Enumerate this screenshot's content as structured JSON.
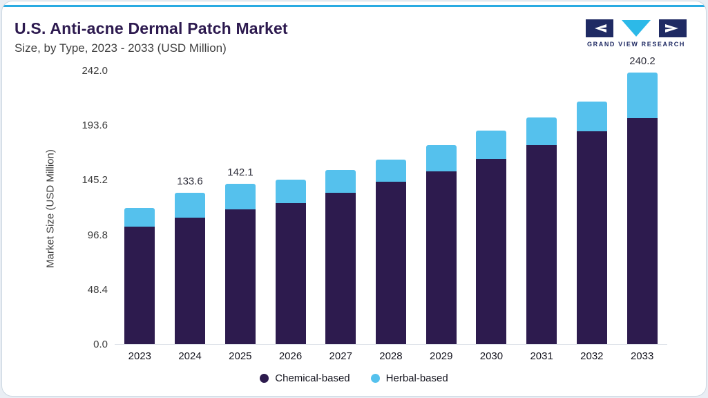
{
  "header": {
    "title": "U.S. Anti-acne Dermal Patch Market",
    "subtitle": "Size, by Type, 2023 - 2033 (USD Million)"
  },
  "logo": {
    "text": "GRAND VIEW RESEARCH"
  },
  "colors": {
    "accent_line": "#29abe2",
    "title_text": "#2d1a4f",
    "subtitle_text": "#3f3f3f",
    "axis_text": "#3d3d3d",
    "logo_navy": "#1f2a63",
    "logo_cyan": "#2cb9e8"
  },
  "chart_data": {
    "type": "bar",
    "stacked": true,
    "title": "U.S. Anti-acne Dermal Patch Market Size, by Type, 2023 - 2033 (USD Million)",
    "ylabel": "Market Size (USD Million)",
    "xlabel": "",
    "ylim": [
      0,
      242.0
    ],
    "yticks": [
      0.0,
      48.4,
      96.8,
      145.2,
      193.6,
      242.0
    ],
    "ytick_labels": [
      "0.0",
      "48.4",
      "96.8",
      "145.2",
      "193.6",
      "242.0"
    ],
    "grid": false,
    "legend_position": "bottom",
    "categories": [
      "2023",
      "2024",
      "2025",
      "2026",
      "2027",
      "2028",
      "2029",
      "2030",
      "2031",
      "2032",
      "2033"
    ],
    "series": [
      {
        "name": "Chemical-based",
        "color": "#2d1b4e",
        "values": [
          104.0,
          112.0,
          119.0,
          125.0,
          134.0,
          143.5,
          153.0,
          164.0,
          176.0,
          188.0,
          200.0
        ]
      },
      {
        "name": "Herbal-based",
        "color": "#55c1ed",
        "values": [
          16.5,
          21.6,
          23.1,
          20.3,
          20.0,
          20.0,
          23.0,
          25.0,
          24.5,
          26.5,
          40.2
        ]
      }
    ],
    "totals": [
      120.5,
      133.6,
      142.1,
      145.3,
      154.0,
      163.5,
      176.0,
      189.0,
      200.5,
      214.5,
      240.2
    ],
    "value_labels": {
      "2024": "133.6",
      "2025": "142.1",
      "2033": "240.2"
    }
  }
}
